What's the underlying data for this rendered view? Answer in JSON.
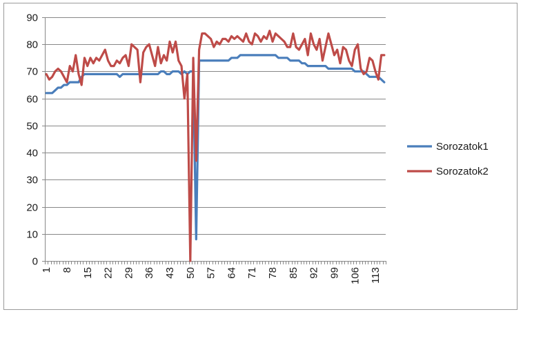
{
  "chart_data": {
    "type": "line",
    "title": "",
    "xlabel": "",
    "ylabel": "",
    "ylim": [
      0,
      90
    ],
    "y_ticks": [
      0,
      10,
      20,
      30,
      40,
      50,
      60,
      70,
      80,
      90
    ],
    "x_tick_labels": [
      "1",
      "8",
      "15",
      "22",
      "29",
      "36",
      "43",
      "50",
      "57",
      "64",
      "71",
      "78",
      "85",
      "92",
      "99",
      "106",
      "113"
    ],
    "x_tick_rotation": "vertical",
    "n_points": 116,
    "grid": "horizontal",
    "legend_position": "right",
    "series": [
      {
        "name": "Sorozatok1",
        "color": "#4a7ebb",
        "values": [
          62,
          62,
          62,
          63,
          64,
          64,
          65,
          65,
          66,
          66,
          66,
          66,
          68,
          69,
          69,
          69,
          69,
          69,
          69,
          69,
          69,
          69,
          69,
          69,
          69,
          68,
          69,
          69,
          69,
          69,
          69,
          69,
          69,
          69,
          69,
          69,
          69,
          69,
          69,
          70,
          70,
          69,
          69,
          70,
          70,
          70,
          69,
          70,
          69,
          70,
          70,
          8,
          74,
          74,
          74,
          74,
          74,
          74,
          74,
          74,
          74,
          74,
          74,
          75,
          75,
          75,
          76,
          76,
          76,
          76,
          76,
          76,
          76,
          76,
          76,
          76,
          76,
          76,
          76,
          75,
          75,
          75,
          75,
          74,
          74,
          74,
          74,
          73,
          73,
          72,
          72,
          72,
          72,
          72,
          72,
          72,
          71,
          71,
          71,
          71,
          71,
          71,
          71,
          71,
          71,
          70,
          70,
          70,
          70,
          69,
          68,
          68,
          68,
          68,
          67,
          66
        ]
      },
      {
        "name": "Sorozatok2",
        "color": "#be4b48",
        "values": [
          69,
          67,
          68,
          70,
          71,
          70,
          68,
          66,
          72,
          70,
          76,
          69,
          65,
          75,
          72,
          75,
          73,
          75,
          74,
          76,
          78,
          74,
          72,
          72,
          74,
          73,
          75,
          76,
          72,
          80,
          79,
          78,
          66,
          77,
          79,
          80,
          76,
          72,
          79,
          73,
          76,
          74,
          81,
          77,
          81,
          74,
          72,
          60,
          69,
          0,
          75,
          37,
          78,
          84,
          84,
          83,
          82,
          79,
          81,
          80,
          82,
          82,
          81,
          83,
          82,
          83,
          82,
          81,
          84,
          81,
          80,
          84,
          83,
          81,
          83,
          82,
          85,
          81,
          84,
          83,
          82,
          81,
          79,
          79,
          84,
          79,
          78,
          80,
          82,
          76,
          84,
          80,
          78,
          82,
          74,
          79,
          84,
          80,
          76,
          78,
          73,
          79,
          78,
          74,
          72,
          78,
          80,
          71,
          69,
          70,
          75,
          74,
          70,
          67,
          76,
          76
        ]
      }
    ]
  }
}
